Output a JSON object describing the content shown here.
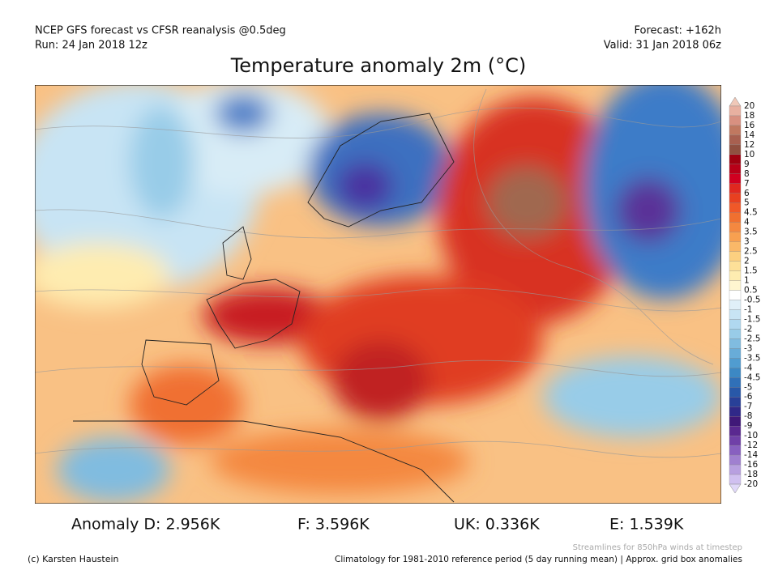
{
  "header": {
    "source": "NCEP GFS forecast vs CFSR reanalysis @0.5deg",
    "run": "Run: 24 Jan 2018 12z",
    "forecast": "Forecast: +162h",
    "valid": "Valid: 31 Jan 2018 06z",
    "title": "Temperature anomaly 2m (°C)"
  },
  "legend": {
    "labels": [
      "20",
      "18",
      "16",
      "14",
      "12",
      "10",
      "9",
      "8",
      "7",
      "6",
      "5",
      "4.5",
      "4",
      "3.5",
      "3",
      "2.5",
      "2",
      "1.5",
      "1",
      "0.5",
      "-0.5",
      "-1",
      "-1.5",
      "-2",
      "-2.5",
      "-3",
      "-3.5",
      "-4",
      "-4.5",
      "-5",
      "-6",
      "-7",
      "-8",
      "-9",
      "-10",
      "-12",
      "-14",
      "-16",
      "-18",
      "-20"
    ],
    "colors": [
      "#f0c8b8",
      "#e8b0a0",
      "#d89080",
      "#c07860",
      "#a86050",
      "#905040",
      "#a00010",
      "#b80018",
      "#d00020",
      "#e02820",
      "#e84020",
      "#f05828",
      "#f07030",
      "#f48840",
      "#f8a050",
      "#fab868",
      "#fcd080",
      "#fde098",
      "#feecb0",
      "#fff6d0",
      "#ffffff",
      "#e0f0f8",
      "#c8e4f4",
      "#b0d8f0",
      "#98cce8",
      "#80bce0",
      "#68acd8",
      "#509cd0",
      "#3c88c4",
      "#3070b8",
      "#2858a8",
      "#284098",
      "#302888",
      "#401878",
      "#5a2890",
      "#7040a8",
      "#8860c0",
      "#a080d0",
      "#b8a0e0",
      "#d0c0f0",
      "#e0d8f8"
    ]
  },
  "stats": [
    "Anomaly D: 2.956K",
    "F: 3.596K",
    "UK: 0.336K",
    "E: 1.539K"
  ],
  "footer": {
    "streamlines": "Streamlines for 850hPa winds at timestep",
    "credit": "(c) Karsten Haustein",
    "climatology": "Climatology for 1981-2010 reference period (5 day running mean) | Approx. grid box anomalies"
  }
}
